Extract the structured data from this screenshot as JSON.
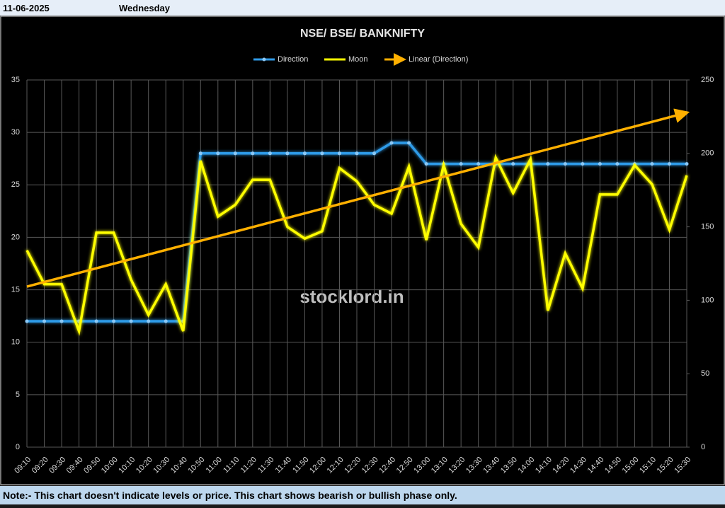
{
  "header": {
    "date": "11-06-2025",
    "day": "Wednesday"
  },
  "note": "Note:- This chart doesn't indicate levels or price. This chart shows bearish or bullish phase only.",
  "watermark": "stocklord.in",
  "chart_data": {
    "type": "line",
    "title": "NSE/ BSE/ BANKNIFTY",
    "categories": [
      "09:10",
      "09:20",
      "09:30",
      "09:40",
      "09:50",
      "10:00",
      "10:10",
      "10:20",
      "10:30",
      "10:40",
      "10:50",
      "11:00",
      "11:10",
      "11:20",
      "11:30",
      "11:40",
      "11:50",
      "12:00",
      "12:10",
      "12:20",
      "12:30",
      "12:40",
      "12:50",
      "13:00",
      "13:10",
      "13:20",
      "13:30",
      "13:40",
      "13:50",
      "14:00",
      "14:10",
      "14:20",
      "14:30",
      "14:40",
      "14:50",
      "15:00",
      "15:10",
      "15:20",
      "15:30"
    ],
    "series": [
      {
        "name": "Direction",
        "color": "#2f9be8",
        "markers": true,
        "values": [
          12,
          12,
          12,
          12,
          12,
          12,
          12,
          12,
          12,
          12,
          28,
          28,
          28,
          28,
          28,
          28,
          28,
          28,
          28,
          28,
          28,
          29,
          29,
          27,
          27,
          27,
          27,
          27,
          27,
          27,
          27,
          27,
          27,
          27,
          27,
          27,
          27,
          27,
          27
        ]
      },
      {
        "name": "Moon",
        "color": "#ffff00",
        "axis": "y2",
        "values": [
          134,
          111,
          111,
          79,
          146,
          146,
          114,
          90,
          111,
          79,
          195,
          157,
          165,
          182,
          182,
          150,
          142,
          147,
          190,
          181,
          165,
          159,
          191,
          141,
          192,
          152,
          136,
          197,
          173,
          196,
          93,
          132,
          108,
          172,
          172,
          192,
          179,
          148,
          185
        ]
      }
    ],
    "trendline": {
      "name": "Linear (Direction)",
      "of": 0,
      "color": "#ffb000"
    },
    "ylim": [
      0,
      35
    ],
    "yticks": [
      0,
      5,
      10,
      15,
      20,
      25,
      30,
      35
    ],
    "y2lim": [
      0,
      250
    ],
    "y2ticks": [
      0,
      50,
      100,
      150,
      200,
      250
    ],
    "grid": true
  }
}
